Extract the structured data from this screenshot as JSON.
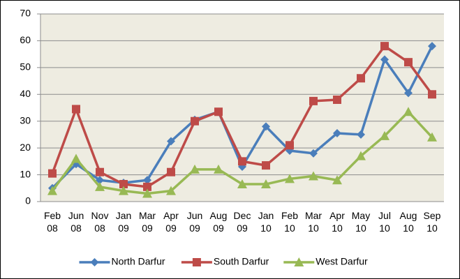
{
  "chart_data": {
    "type": "line",
    "categories": [
      "Feb 08",
      "Jun 08",
      "Nov 08",
      "Jan 09",
      "Mar 09",
      "Apr 09",
      "Jun 09",
      "Aug 09",
      "Dec 09",
      "Jan 10",
      "Feb 10",
      "Mar 10",
      "Apr 10",
      "May 10",
      "Jul 10",
      "Aug 10",
      "Sep 10"
    ],
    "series": [
      {
        "name": "North Darfur",
        "color": "#4a7ebb",
        "marker": "diamond",
        "values": [
          5,
          14,
          8,
          7,
          8,
          22.5,
          30.5,
          33.5,
          13,
          28,
          19,
          18,
          25.5,
          25,
          53,
          40.5,
          58
        ]
      },
      {
        "name": "South Darfur",
        "color": "#be4b48",
        "marker": "square",
        "values": [
          10.5,
          34.5,
          11,
          6.5,
          5.5,
          11,
          30,
          33.5,
          15,
          13.5,
          21,
          37.5,
          38,
          46,
          58,
          52,
          40
        ]
      },
      {
        "name": "West Darfur",
        "color": "#98b954",
        "marker": "triangle",
        "values": [
          4,
          16,
          5.5,
          4,
          3,
          4,
          12,
          12,
          6.5,
          6.5,
          8.5,
          9.5,
          8,
          17,
          24.5,
          33.5,
          24
        ]
      }
    ],
    "ylim": [
      0,
      70
    ],
    "yticks": [
      0,
      10,
      20,
      30,
      40,
      50,
      60,
      70
    ],
    "grid": true,
    "legend": "bottom"
  }
}
